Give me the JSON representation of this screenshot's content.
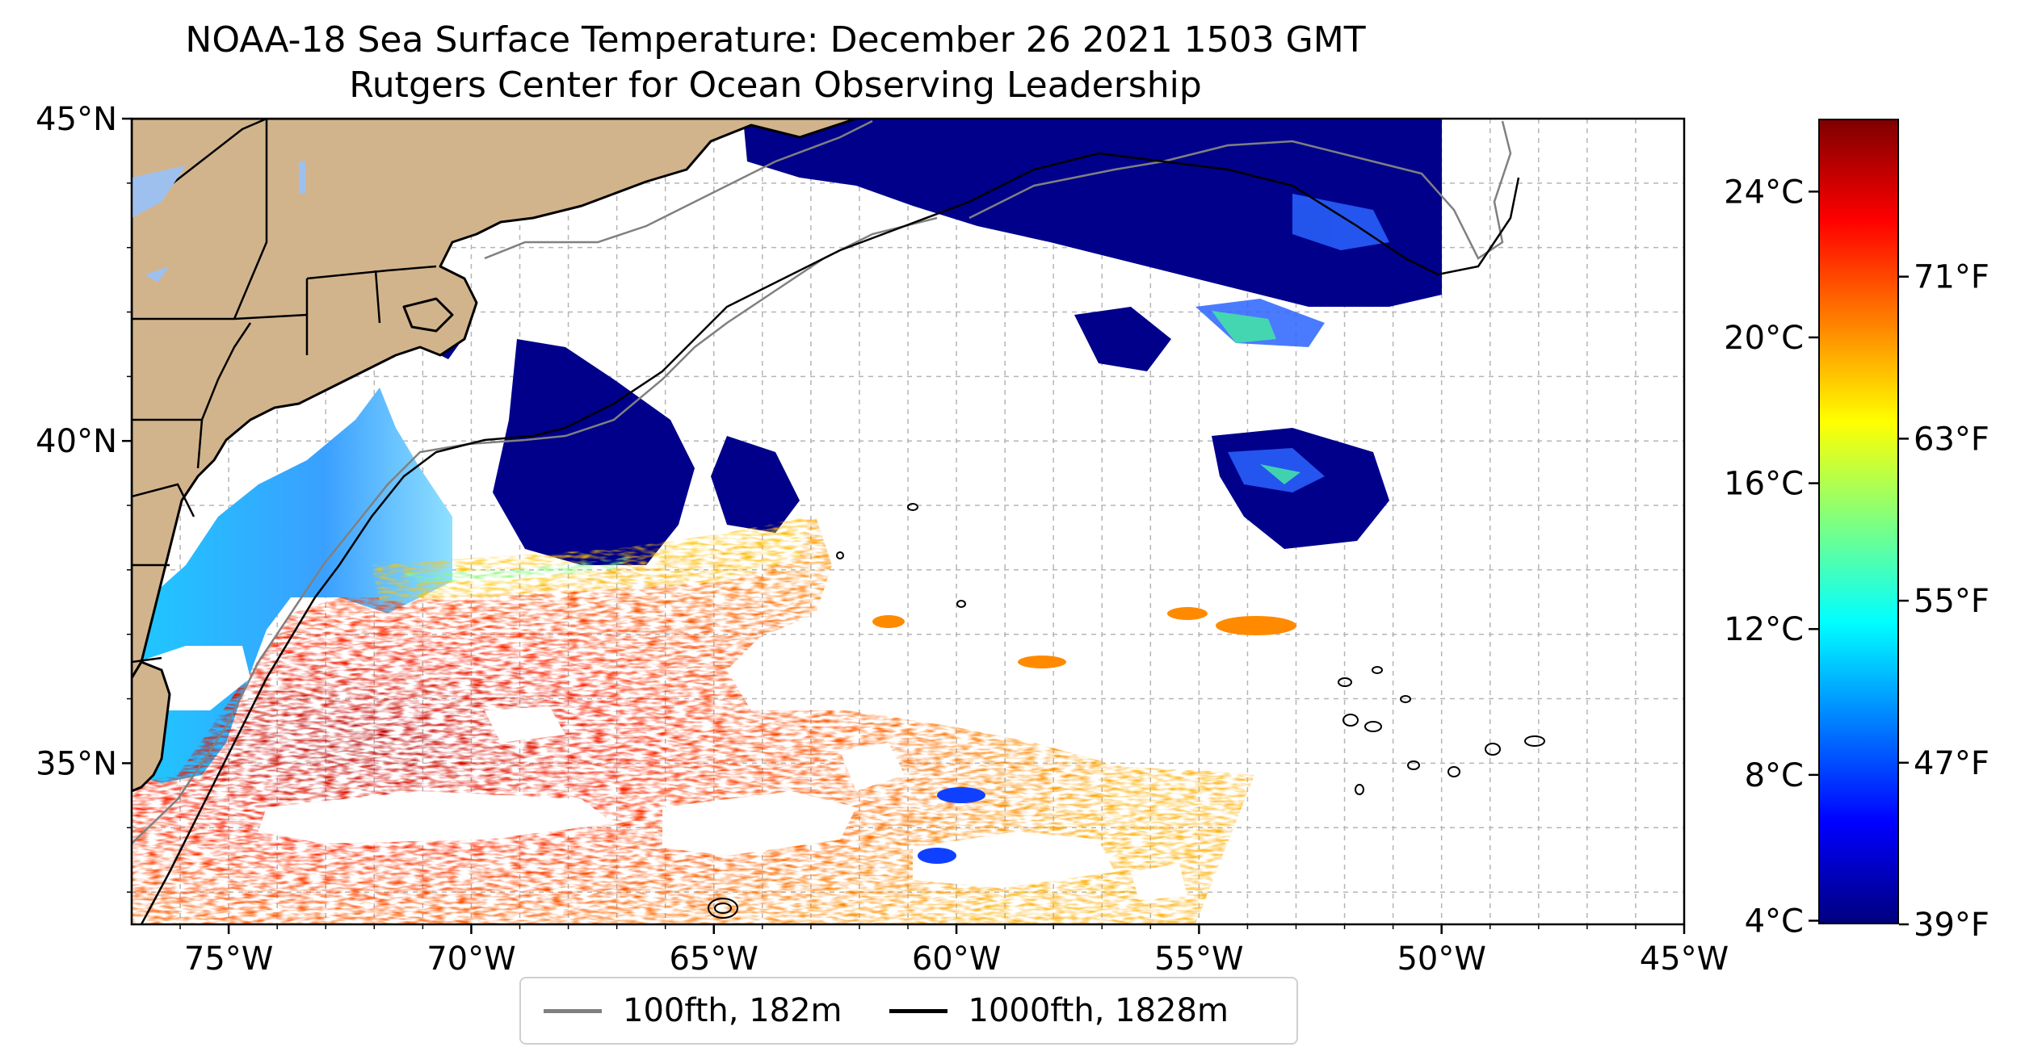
{
  "title_line1": "NOAA-18 Sea Surface Temperature: December 26 2021 1503 GMT",
  "title_line2": "Rutgers Center for Ocean Observing Leadership",
  "map": {
    "lon_range": [
      -77,
      -45
    ],
    "lat_range": [
      32.5,
      45
    ],
    "lon_ticks": [
      "75°W",
      "70°W",
      "65°W",
      "60°W",
      "55°W",
      "50°W",
      "45°W"
    ],
    "lat_ticks": [
      "45°N",
      "40°N",
      "35°N"
    ],
    "land_color": "#d2b48c",
    "lake_color": "#9ec0ef",
    "grid": "dashed"
  },
  "colorbar": {
    "celsius_ticks": [
      "24°C",
      "20°C",
      "16°C",
      "12°C",
      "8°C",
      "4°C"
    ],
    "fahrenheit_ticks": [
      "71°F",
      "63°F",
      "55°F",
      "47°F",
      "39°F"
    ],
    "colormap": "jet",
    "range_c": [
      3.9,
      26
    ]
  },
  "legend": {
    "items": [
      {
        "label": "100fth, 182m",
        "color": "#808080"
      },
      {
        "label": "1000fth, 1828m",
        "color": "#000000"
      }
    ]
  }
}
